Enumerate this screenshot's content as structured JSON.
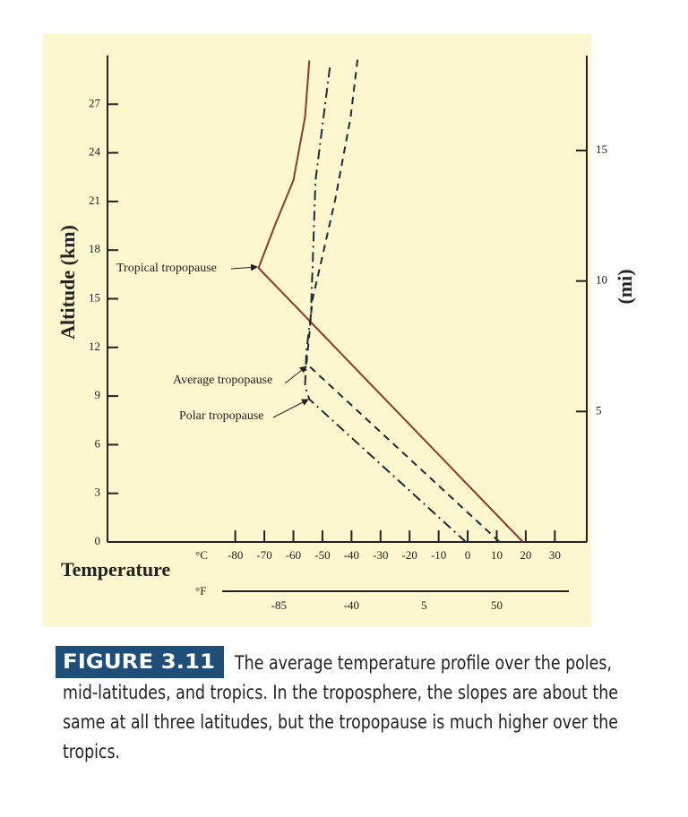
{
  "chart_data": {
    "type": "line",
    "y_label": "Altitude (km)",
    "y2_label": "(mi)",
    "x_label": "Temperature",
    "x_unit": "°C",
    "x2_unit": "°F",
    "xlim": [
      -124,
      41
    ],
    "xticks": [
      -80,
      -70,
      -60,
      -50,
      -40,
      -30,
      -20,
      -10,
      0,
      10,
      20,
      30
    ],
    "x2lim": [
      -191.2,
      105.8
    ],
    "x2ticks": [
      -85,
      -40,
      5,
      50
    ],
    "ylim": [
      0,
      30
    ],
    "yticks": [
      0,
      3,
      6,
      9,
      12,
      15,
      18,
      21,
      24,
      27
    ],
    "y2lim": [
      0,
      18.64
    ],
    "y2ticks": [
      5,
      10,
      15
    ],
    "series": [
      {
        "color": "#8b3a2a",
        "style": "solid",
        "x": [
          19,
          -72,
          -66.2,
          -60,
          -56,
          -54.5
        ],
        "values": [
          0,
          16.9,
          19.6,
          22.3,
          26.2,
          29.7
        ]
      },
      {
        "color": "#1c2a3a",
        "style": "dashed",
        "x": [
          11,
          -55.5,
          -54.6,
          -53.5,
          -50.3,
          -45.5,
          -40.3,
          -37.9
        ],
        "values": [
          0,
          11.0,
          12.6,
          14.9,
          17.4,
          21.2,
          26.2,
          29.8
        ]
      },
      {
        "color": "#1c2a3a",
        "style": "dashdot",
        "x": [
          -0.6,
          -54.5,
          -56,
          -55.5,
          -54,
          -53.3,
          -52.4,
          -47.3
        ],
        "values": [
          0,
          8.8,
          9.6,
          11.8,
          14.0,
          17.4,
          22.3,
          29.5
        ]
      }
    ],
    "annotations": [
      "Tropical tropopause",
      "Average tropopause",
      "Polar tropopause"
    ],
    "caption": {
      "label": "FIGURE 3.11",
      "lines": [
        "The average temperature profile over the poles,",
        "mid-latitudes, and tropics. In the troposphere, the slopes are about the",
        "same at all three latitudes, but the tropopause is much higher over the",
        "tropics."
      ]
    }
  }
}
